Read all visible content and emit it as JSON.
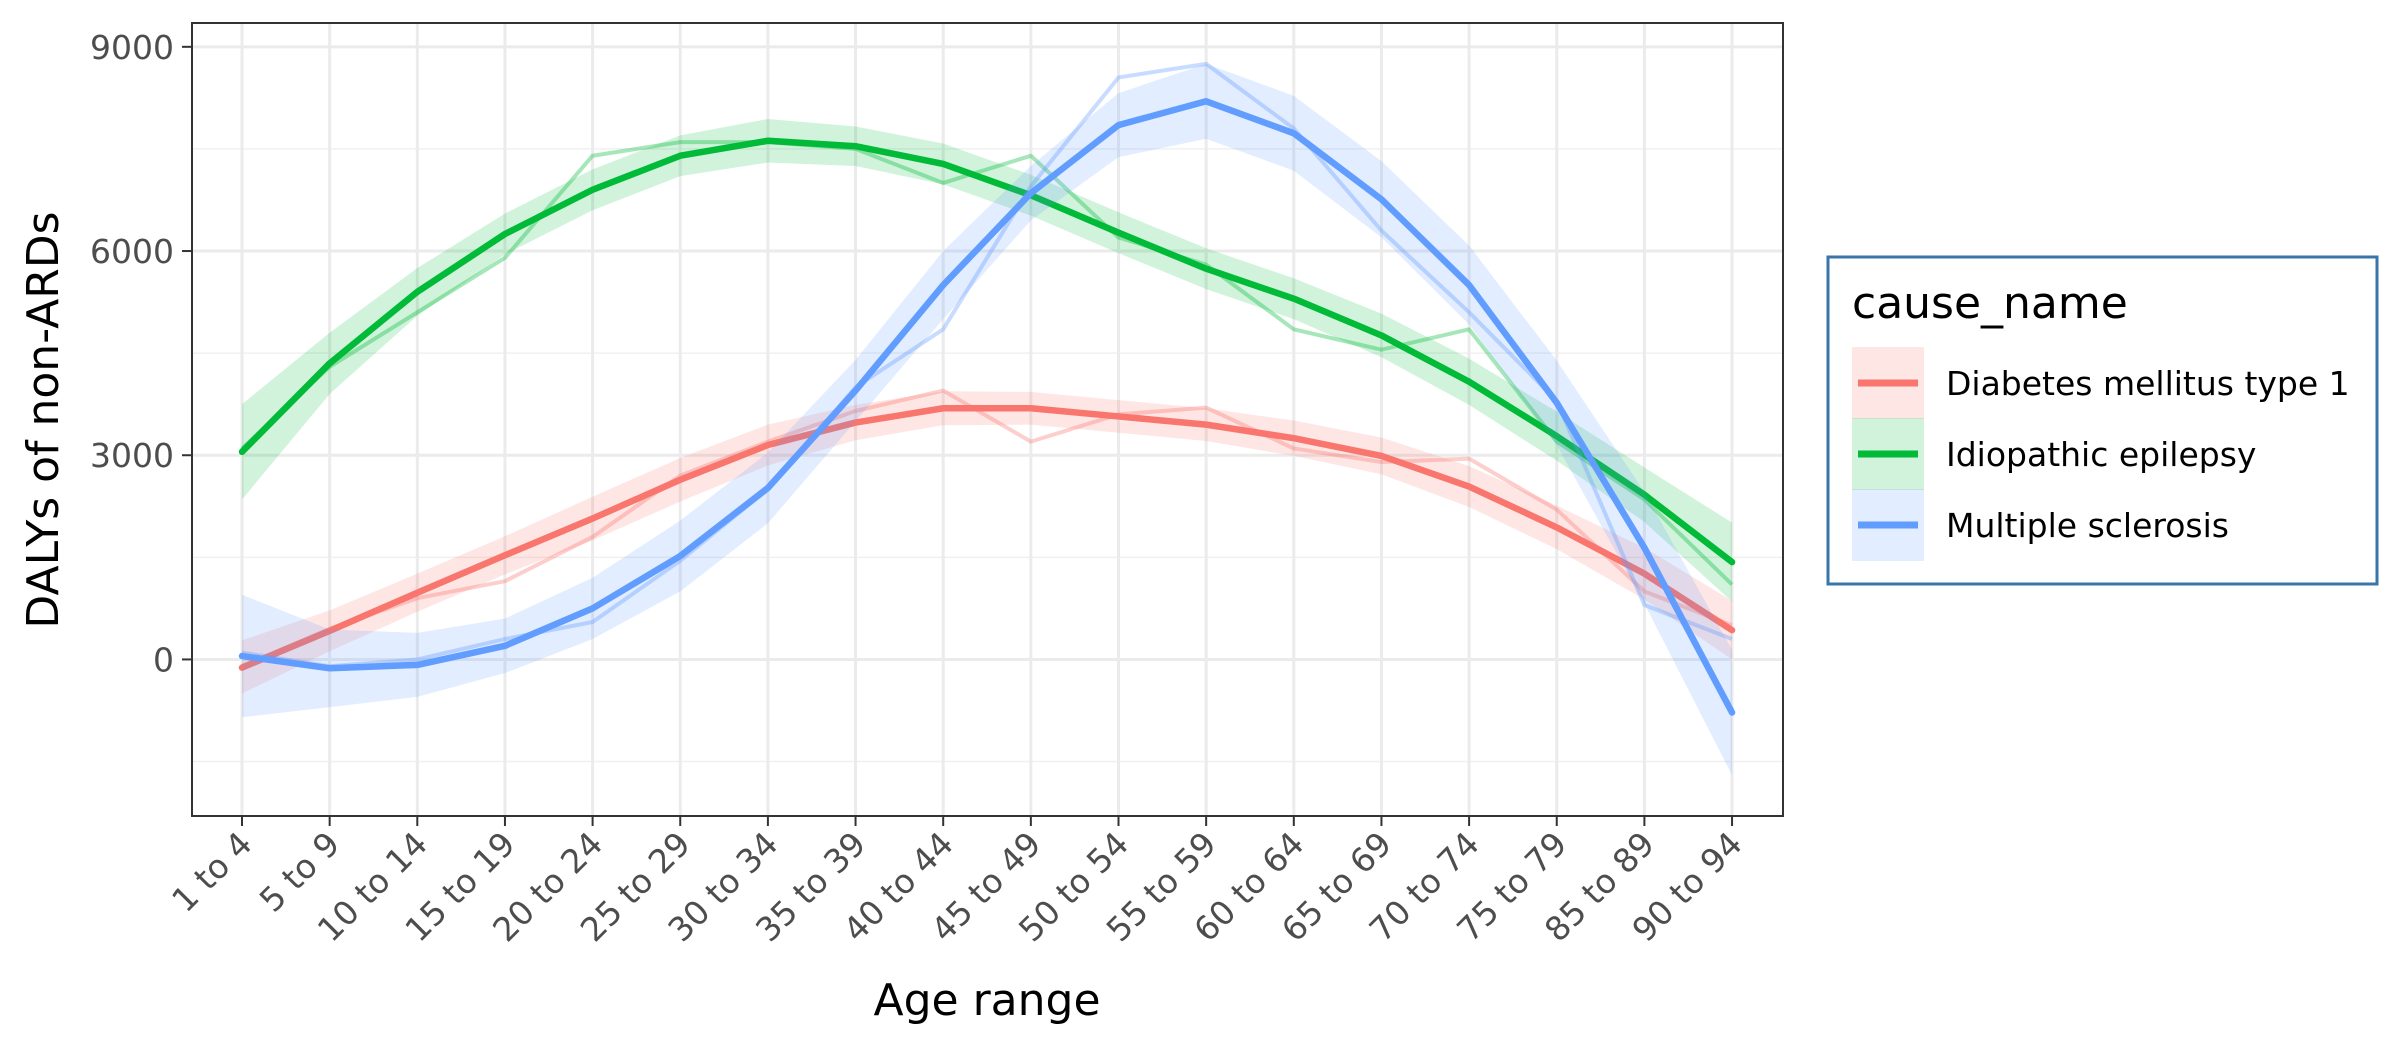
{
  "chart_data": {
    "type": "line",
    "xlabel": "Age range",
    "ylabel": "DALYs of non-ARDs",
    "categories": [
      "1 to 4",
      "5 to 9",
      "10 to 14",
      "15 to 19",
      "20 to 24",
      "25 to 29",
      "30 to 34",
      "35 to 39",
      "40 to 44",
      "45 to 49",
      "50 to 54",
      "55 to 59",
      "60 to 64",
      "65 to 69",
      "70 to 74",
      "75 to 79",
      "85 to 89",
      "90 to 94"
    ],
    "ylim": [
      -2300,
      9350
    ],
    "yticks": [
      0,
      3000,
      6000,
      9000
    ],
    "grid": true,
    "legend": {
      "title": "cause_name",
      "position": "right"
    },
    "series": [
      {
        "name": "Diabetes mellitus type 1",
        "color": "#F8766D",
        "smooth": [
          -120,
          420,
          980,
          1530,
          2070,
          2640,
          3150,
          3480,
          3690,
          3690,
          3570,
          3450,
          3250,
          2990,
          2540,
          1940,
          1260,
          430
        ],
        "observed": [
          -100,
          450,
          900,
          1150,
          1800,
          2700,
          3200,
          3650,
          3950,
          3200,
          3600,
          3700,
          3100,
          2900,
          2950,
          2200,
          1000,
          500
        ],
        "ribbon_low": [
          -500,
          120,
          700,
          1250,
          1750,
          2320,
          2850,
          3220,
          3440,
          3450,
          3330,
          3210,
          2990,
          2720,
          2240,
          1620,
          880,
          0
        ],
        "ribbon_high": [
          280,
          720,
          1260,
          1810,
          2390,
          2960,
          3450,
          3740,
          3940,
          3930,
          3810,
          3690,
          3510,
          3260,
          2840,
          2260,
          1640,
          860
        ]
      },
      {
        "name": "Idiopathic epilepsy",
        "color": "#00BA38",
        "smooth": [
          3050,
          4350,
          5400,
          6250,
          6900,
          7400,
          7620,
          7540,
          7280,
          6820,
          6270,
          5740,
          5300,
          4760,
          4080,
          3280,
          2420,
          1430
        ],
        "observed": [
          3100,
          4300,
          5100,
          5900,
          7400,
          7600,
          7600,
          7500,
          7000,
          7400,
          6200,
          5800,
          4850,
          4550,
          4850,
          3200,
          2350,
          1100
        ],
        "ribbon_low": [
          2350,
          3900,
          5050,
          5950,
          6600,
          7100,
          7300,
          7250,
          6980,
          6520,
          5970,
          5440,
          5000,
          4440,
          3740,
          2920,
          2020,
          850
        ],
        "ribbon_high": [
          3750,
          4800,
          5750,
          6550,
          7200,
          7700,
          7940,
          7830,
          7580,
          7120,
          6570,
          6040,
          5600,
          5080,
          4420,
          3640,
          2820,
          2010
        ]
      },
      {
        "name": "Multiple sclerosis",
        "color": "#619CFF",
        "smooth": [
          50,
          -130,
          -80,
          200,
          750,
          1520,
          2520,
          3950,
          5500,
          6850,
          7850,
          8200,
          7730,
          6760,
          5500,
          3770,
          1640,
          -780
        ],
        "observed": [
          100,
          -100,
          0,
          300,
          550,
          1450,
          2500,
          4000,
          4850,
          6950,
          8550,
          8750,
          7800,
          6300,
          5100,
          3800,
          800,
          300
        ],
        "ribbon_low": [
          -850,
          -700,
          -550,
          -200,
          300,
          1000,
          2000,
          3500,
          5000,
          6450,
          7380,
          7650,
          7180,
          6200,
          4920,
          3150,
          820,
          -1700
        ],
        "ribbon_high": [
          950,
          440,
          390,
          600,
          1200,
          2040,
          3040,
          4400,
          6000,
          7250,
          8320,
          8750,
          8280,
          7320,
          6080,
          4390,
          2460,
          140
        ]
      }
    ]
  }
}
